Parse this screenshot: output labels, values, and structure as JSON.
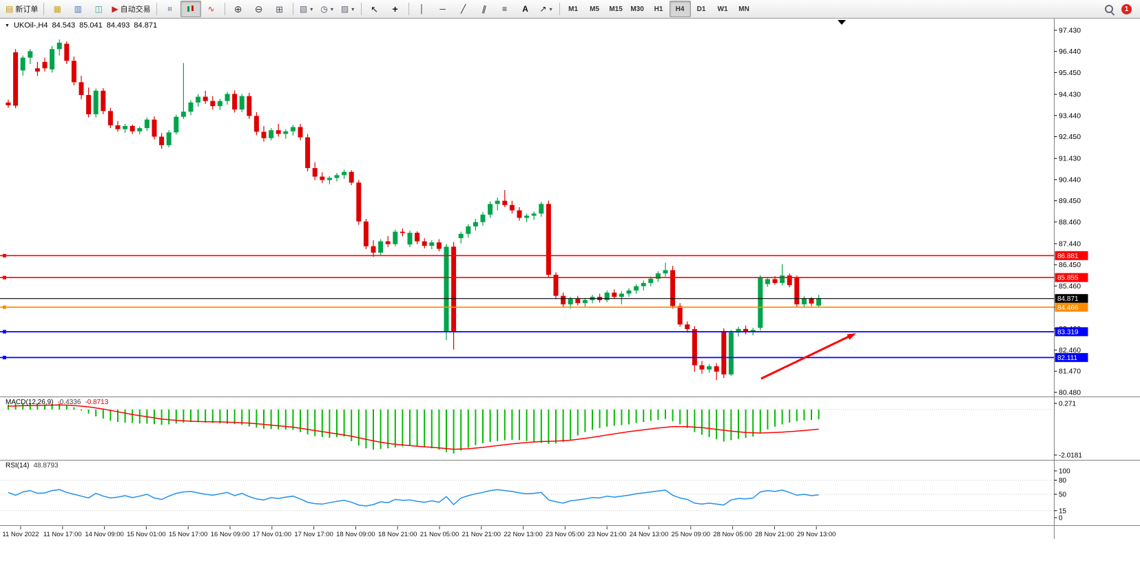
{
  "toolbar": {
    "buttons": [
      {
        "name": "new-order",
        "label": "新订单"
      },
      {
        "name": "separator"
      },
      {
        "name": "chart-windows"
      },
      {
        "name": "profiles"
      },
      {
        "name": "data-window"
      },
      {
        "name": "auto-trading",
        "label": "自动交易"
      },
      {
        "name": "separator"
      },
      {
        "name": "bar-chart"
      },
      {
        "name": "candlesticks"
      },
      {
        "name": "line-chart"
      },
      {
        "name": "separator"
      },
      {
        "name": "zoom-in"
      },
      {
        "name": "zoom-out"
      },
      {
        "name": "tile-windows"
      },
      {
        "name": "separator"
      },
      {
        "name": "new-chart"
      },
      {
        "name": "periods"
      },
      {
        "name": "templates"
      },
      {
        "name": "separator"
      },
      {
        "name": "cursor"
      },
      {
        "name": "crosshair"
      },
      {
        "name": "separator"
      },
      {
        "name": "vertical-line"
      },
      {
        "name": "horizontal-line"
      },
      {
        "name": "trendline"
      },
      {
        "name": "channel"
      },
      {
        "name": "fibonacci"
      },
      {
        "name": "text"
      },
      {
        "name": "arrows"
      },
      {
        "name": "separator"
      }
    ],
    "timeframes": {
      "items": [
        "M1",
        "M5",
        "M15",
        "M30",
        "H1",
        "H4",
        "D1",
        "W1",
        "MN"
      ],
      "active": "H4"
    },
    "notification_badge": "1"
  },
  "chart": {
    "title": {
      "symbol_period": "UKOil-,H4",
      "open": "84.543",
      "high": "85.041",
      "low": "84.493",
      "close": "84.871"
    },
    "colors": {
      "bull": "#00A44A",
      "bear": "#DD0000",
      "wick_bull": "#00A44A",
      "wick_bear": "#DD0000",
      "macd_histogram": "#00BB00",
      "macd_signal": "#FF0000",
      "rsi_line": "#2090F0",
      "axis_text": "#000000",
      "background": "#FFFFFF",
      "separator": "#808080",
      "line_red": "#FF0000",
      "line_orange": "#FF8C00",
      "line_blue": "#0000FF",
      "line_black": "#000000",
      "annotation_arrow": "#FF0000"
    },
    "price_axis": {
      "labels": [
        "97.430",
        "96.440",
        "95.450",
        "94.430",
        "93.440",
        "92.450",
        "91.430",
        "90.440",
        "89.450",
        "88.460",
        "87.440",
        "86.450",
        "85.460",
        "84.470",
        "83.460",
        "82.460",
        "81.470",
        "80.480"
      ]
    },
    "time_axis": {
      "labels": [
        "11 Nov 2022",
        "11 Nov 17:00",
        "14 Nov 09:00",
        "15 Nov 01:00",
        "15 Nov 17:00",
        "16 Nov 09:00",
        "17 Nov 01:00",
        "17 Nov 17:00",
        "18 Nov 09:00",
        "18 Nov 21:00",
        "21 Nov 05:00",
        "21 Nov 21:00",
        "22 Nov 13:00",
        "23 Nov 05:00",
        "23 Nov 21:00",
        "24 Nov 13:00",
        "25 Nov 09:00",
        "28 Nov 05:00",
        "28 Nov 21:00",
        "29 Nov 13:00"
      ]
    },
    "price_lines": [
      {
        "value": 86.881,
        "tag": "86.881",
        "color": "#FF0000"
      },
      {
        "value": 85.855,
        "tag": "85.855",
        "color": "#FF0000"
      },
      {
        "value": 84.871,
        "tag": "84.871",
        "color": "#000000"
      },
      {
        "value": 84.466,
        "tag": "84.466",
        "color": "#FF8C00"
      },
      {
        "value": 83.319,
        "tag": "83.319",
        "color": "#0000FF"
      },
      {
        "value": 82.111,
        "tag": "82.111",
        "color": "#0000FF"
      }
    ],
    "indicators": {
      "macd": {
        "label": "MACD(12,26,9)",
        "value_main": "-0.4336",
        "value_signal": "-0.8713",
        "axis_labels": [
          "0.271",
          "-2.0181"
        ]
      },
      "rsi": {
        "label": "RSI(14)",
        "value": "48.8793",
        "axis_labels": [
          "100",
          "80",
          "50",
          "15",
          "0"
        ],
        "level_values": [
          80,
          50,
          15
        ]
      }
    },
    "annotations": [
      {
        "type": "trend-arrow",
        "color": "#FF0000",
        "direction": "up-right",
        "points_to_level": "83.319"
      }
    ]
  },
  "chart_data": {
    "type": "candlestick",
    "symbol": "UKOil-",
    "timeframe": "H4",
    "title": "UKOil-,H4 84.543 85.041 84.493 84.871",
    "y_axis_range": [
      80.3,
      97.75
    ],
    "macd_axis": {
      "max": 0.271,
      "min": -2.0181
    },
    "rsi_axis": {
      "max": 100,
      "min": 0
    },
    "ohlc_format": [
      "open",
      "high",
      "low",
      "close"
    ],
    "candles": [
      [
        94.05,
        94.18,
        93.8,
        93.92
      ],
      [
        96.4,
        96.55,
        93.78,
        93.9
      ],
      [
        95.55,
        96.25,
        95.3,
        96.15
      ],
      [
        96.15,
        96.55,
        95.85,
        96.45
      ],
      [
        95.65,
        95.95,
        95.3,
        95.5
      ],
      [
        95.95,
        96.15,
        95.5,
        95.65
      ],
      [
        95.6,
        96.7,
        95.45,
        96.55
      ],
      [
        96.55,
        97.0,
        96.25,
        96.85
      ],
      [
        96.8,
        96.92,
        95.85,
        96.0
      ],
      [
        96.0,
        96.2,
        94.85,
        95.0
      ],
      [
        95.0,
        95.3,
        94.2,
        94.4
      ],
      [
        94.4,
        94.75,
        93.35,
        93.5
      ],
      [
        93.5,
        94.7,
        93.35,
        94.6
      ],
      [
        94.6,
        94.72,
        93.5,
        93.65
      ],
      [
        93.65,
        93.8,
        92.85,
        92.98
      ],
      [
        92.98,
        93.18,
        92.68,
        92.8
      ],
      [
        92.8,
        93.05,
        92.62,
        92.95
      ],
      [
        92.95,
        93.02,
        92.58,
        92.7
      ],
      [
        92.7,
        92.92,
        92.55,
        92.85
      ],
      [
        92.85,
        93.35,
        92.72,
        93.25
      ],
      [
        93.25,
        93.4,
        92.32,
        92.45
      ],
      [
        92.45,
        92.62,
        91.88,
        92.05
      ],
      [
        92.05,
        92.75,
        91.95,
        92.65
      ],
      [
        92.65,
        93.48,
        92.55,
        93.38
      ],
      [
        93.38,
        95.9,
        93.28,
        93.62
      ],
      [
        93.62,
        94.15,
        93.45,
        94.05
      ],
      [
        94.05,
        94.45,
        93.85,
        94.32
      ],
      [
        94.32,
        94.6,
        93.98,
        94.12
      ],
      [
        94.12,
        94.35,
        93.72,
        93.88
      ],
      [
        93.88,
        94.22,
        93.7,
        94.12
      ],
      [
        94.12,
        94.55,
        93.95,
        94.45
      ],
      [
        94.45,
        94.62,
        93.58,
        93.72
      ],
      [
        93.72,
        94.45,
        93.6,
        94.35
      ],
      [
        94.35,
        94.5,
        93.28,
        93.42
      ],
      [
        93.42,
        93.6,
        92.52,
        92.68
      ],
      [
        92.68,
        92.95,
        92.22,
        92.38
      ],
      [
        92.38,
        92.85,
        92.28,
        92.75
      ],
      [
        92.75,
        93.05,
        92.45,
        92.58
      ],
      [
        92.58,
        92.8,
        92.35,
        92.7
      ],
      [
        92.7,
        93.0,
        92.5,
        92.9
      ],
      [
        92.9,
        93.05,
        92.28,
        92.42
      ],
      [
        92.42,
        92.58,
        90.82,
        90.98
      ],
      [
        90.98,
        91.25,
        90.42,
        90.58
      ],
      [
        90.58,
        90.78,
        90.28,
        90.42
      ],
      [
        90.42,
        90.6,
        90.22,
        90.52
      ],
      [
        90.52,
        90.75,
        90.35,
        90.65
      ],
      [
        90.65,
        90.9,
        90.48,
        90.8
      ],
      [
        90.8,
        90.88,
        90.18,
        90.3
      ],
      [
        90.3,
        90.42,
        88.32,
        88.48
      ],
      [
        88.48,
        88.6,
        87.18,
        87.32
      ],
      [
        87.32,
        87.6,
        86.82,
        87.02
      ],
      [
        87.02,
        87.65,
        86.92,
        87.55
      ],
      [
        87.55,
        87.8,
        87.28,
        87.42
      ],
      [
        87.42,
        88.1,
        87.32,
        88.0
      ],
      [
        88.0,
        88.16,
        87.78,
        87.94
      ],
      [
        87.4,
        88.05,
        87.28,
        87.95
      ],
      [
        87.95,
        88.02,
        87.42,
        87.55
      ],
      [
        87.55,
        87.7,
        87.22,
        87.34
      ],
      [
        87.34,
        87.6,
        87.18,
        87.5
      ],
      [
        87.5,
        87.65,
        87.08,
        87.2
      ],
      [
        83.3,
        87.42,
        82.92,
        87.3
      ],
      [
        87.3,
        87.52,
        82.48,
        83.35
      ],
      [
        87.7,
        88.0,
        87.45,
        87.9
      ],
      [
        87.9,
        88.35,
        87.72,
        88.25
      ],
      [
        88.25,
        88.6,
        88.05,
        88.45
      ],
      [
        88.45,
        88.92,
        88.28,
        88.8
      ],
      [
        88.8,
        89.42,
        88.65,
        89.3
      ],
      [
        89.3,
        89.6,
        89.0,
        89.45
      ],
      [
        89.45,
        89.95,
        89.15,
        89.25
      ],
      [
        89.25,
        89.45,
        88.85,
        89.0
      ],
      [
        89.0,
        89.15,
        88.52,
        88.65
      ],
      [
        88.65,
        88.85,
        88.45,
        88.75
      ],
      [
        88.75,
        88.95,
        88.55,
        88.85
      ],
      [
        88.85,
        89.4,
        88.7,
        89.3
      ],
      [
        89.3,
        89.46,
        85.85,
        85.98
      ],
      [
        85.98,
        86.1,
        84.85,
        85.0
      ],
      [
        85.0,
        85.15,
        84.45,
        84.6
      ],
      [
        84.6,
        84.95,
        84.4,
        84.85
      ],
      [
        84.85,
        85.0,
        84.55,
        84.66
      ],
      [
        84.66,
        84.9,
        84.5,
        84.8
      ],
      [
        84.8,
        85.05,
        84.65,
        84.95
      ],
      [
        84.95,
        85.1,
        84.68,
        84.8
      ],
      [
        84.8,
        85.25,
        84.7,
        85.15
      ],
      [
        85.15,
        85.3,
        84.85,
        84.95
      ],
      [
        84.95,
        85.22,
        84.6,
        85.1
      ],
      [
        85.1,
        85.36,
        84.95,
        85.25
      ],
      [
        85.25,
        85.55,
        85.1,
        85.45
      ],
      [
        85.45,
        85.72,
        85.25,
        85.6
      ],
      [
        85.6,
        85.9,
        85.45,
        85.8
      ],
      [
        85.8,
        86.15,
        85.65,
        86.05
      ],
      [
        86.05,
        86.55,
        85.9,
        86.2
      ],
      [
        86.2,
        86.4,
        84.4,
        84.52
      ],
      [
        84.52,
        84.66,
        83.55,
        83.66
      ],
      [
        83.66,
        83.8,
        83.28,
        83.44
      ],
      [
        83.44,
        83.58,
        81.45,
        81.75
      ],
      [
        81.75,
        81.95,
        81.35,
        81.55
      ],
      [
        81.55,
        81.8,
        81.4,
        81.7
      ],
      [
        81.7,
        81.85,
        81.05,
        81.45
      ],
      [
        83.35,
        83.48,
        81.15,
        81.32
      ],
      [
        81.32,
        83.4,
        81.25,
        83.28
      ],
      [
        83.28,
        83.55,
        83.1,
        83.45
      ],
      [
        83.45,
        83.6,
        83.2,
        83.3
      ],
      [
        83.3,
        83.5,
        83.15,
        83.4
      ],
      [
        83.5,
        85.96,
        83.38,
        85.88
      ],
      [
        85.55,
        85.88,
        85.42,
        85.78
      ],
      [
        85.78,
        85.92,
        85.52,
        85.6
      ],
      [
        85.6,
        86.48,
        85.48,
        85.95
      ],
      [
        85.95,
        86.05,
        85.4,
        85.5
      ],
      [
        85.88,
        85.95,
        84.48,
        84.6
      ],
      [
        84.6,
        84.98,
        84.48,
        84.88
      ],
      [
        84.88,
        84.94,
        84.52,
        84.64
      ],
      [
        84.543,
        85.041,
        84.493,
        84.871
      ]
    ],
    "macd_histogram": [
      0.22,
      0.25,
      0.24,
      0.271,
      0.26,
      0.22,
      0.25,
      0.27,
      0.18,
      0.1,
      -0.05,
      -0.18,
      -0.3,
      -0.4,
      -0.5,
      -0.55,
      -0.58,
      -0.6,
      -0.62,
      -0.63,
      -0.65,
      -0.68,
      -0.66,
      -0.62,
      -0.58,
      -0.55,
      -0.56,
      -0.58,
      -0.6,
      -0.62,
      -0.63,
      -0.65,
      -0.68,
      -0.75,
      -0.8,
      -0.85,
      -0.87,
      -0.88,
      -0.89,
      -0.9,
      -1.0,
      -1.1,
      -1.18,
      -1.22,
      -1.25,
      -1.22,
      -1.2,
      -1.4,
      -1.6,
      -1.72,
      -1.78,
      -1.75,
      -1.72,
      -1.68,
      -1.64,
      -1.62,
      -1.64,
      -1.68,
      -1.72,
      -1.78,
      -1.88,
      -1.95,
      -1.82,
      -1.7,
      -1.58,
      -1.5,
      -1.44,
      -1.4,
      -1.36,
      -1.34,
      -1.36,
      -1.4,
      -1.44,
      -1.48,
      -1.52,
      -1.5,
      -1.44,
      -1.34,
      -1.15,
      -1.0,
      -0.9,
      -0.82,
      -0.76,
      -0.72,
      -0.69,
      -0.66,
      -0.6,
      -0.55,
      -0.5,
      -0.46,
      -0.42,
      -0.52,
      -0.66,
      -0.82,
      -1.0,
      -1.12,
      -1.22,
      -1.32,
      -1.42,
      -1.36,
      -1.3,
      -1.26,
      -1.2,
      -1.02,
      -0.88,
      -0.76,
      -0.66,
      -0.58,
      -0.52,
      -0.48,
      -0.46,
      -0.4336
    ],
    "macd_signal": [
      0.15,
      0.16,
      0.17,
      0.175,
      0.18,
      0.19,
      0.195,
      0.2,
      0.195,
      0.18,
      0.15,
      0.12,
      0.07,
      0.02,
      -0.04,
      -0.1,
      -0.16,
      -0.22,
      -0.27,
      -0.32,
      -0.37,
      -0.42,
      -0.45,
      -0.48,
      -0.5,
      -0.52,
      -0.53,
      -0.54,
      -0.545,
      -0.55,
      -0.56,
      -0.57,
      -0.585,
      -0.6,
      -0.63,
      -0.66,
      -0.69,
      -0.72,
      -0.75,
      -0.78,
      -0.83,
      -0.88,
      -0.93,
      -0.98,
      -1.03,
      -1.08,
      -1.13,
      -1.18,
      -1.25,
      -1.32,
      -1.39,
      -1.45,
      -1.5,
      -1.54,
      -1.57,
      -1.6,
      -1.63,
      -1.65,
      -1.675,
      -1.7,
      -1.73,
      -1.76,
      -1.75,
      -1.74,
      -1.71,
      -1.68,
      -1.64,
      -1.6,
      -1.56,
      -1.52,
      -1.49,
      -1.46,
      -1.44,
      -1.42,
      -1.41,
      -1.4,
      -1.38,
      -1.36,
      -1.32,
      -1.28,
      -1.23,
      -1.18,
      -1.13,
      -1.08,
      -1.03,
      -0.98,
      -0.94,
      -0.9,
      -0.86,
      -0.82,
      -0.79,
      -0.76,
      -0.76,
      -0.76,
      -0.78,
      -0.8,
      -0.84,
      -0.88,
      -0.92,
      -0.96,
      -0.99,
      -1.02,
      -1.03,
      -1.04,
      -1.03,
      -1.02,
      -1.0,
      -0.98,
      -0.96,
      -0.93,
      -0.9,
      -0.8713
    ],
    "rsi": [
      54,
      48,
      55,
      58,
      52,
      53,
      58,
      60,
      54,
      50,
      46,
      42,
      52,
      46,
      42,
      44,
      47,
      43,
      46,
      50,
      42,
      39,
      46,
      52,
      55,
      56,
      53,
      50,
      48,
      51,
      54,
      47,
      52,
      45,
      40,
      38,
      43,
      41,
      44,
      46,
      40,
      33,
      30,
      29,
      32,
      35,
      37,
      33,
      27,
      25,
      28,
      34,
      32,
      39,
      37,
      38,
      35,
      33,
      36,
      33,
      45,
      28,
      42,
      47,
      51,
      54,
      58,
      60,
      58,
      56,
      53,
      51,
      52,
      54,
      38,
      34,
      31,
      36,
      38,
      40,
      43,
      42,
      46,
      44,
      46,
      48,
      51,
      53,
      55,
      57,
      59,
      48,
      42,
      39,
      31,
      29,
      31,
      29,
      27,
      38,
      41,
      40,
      42,
      55,
      58,
      56,
      59,
      54,
      48,
      50,
      47,
      48.88
    ]
  }
}
